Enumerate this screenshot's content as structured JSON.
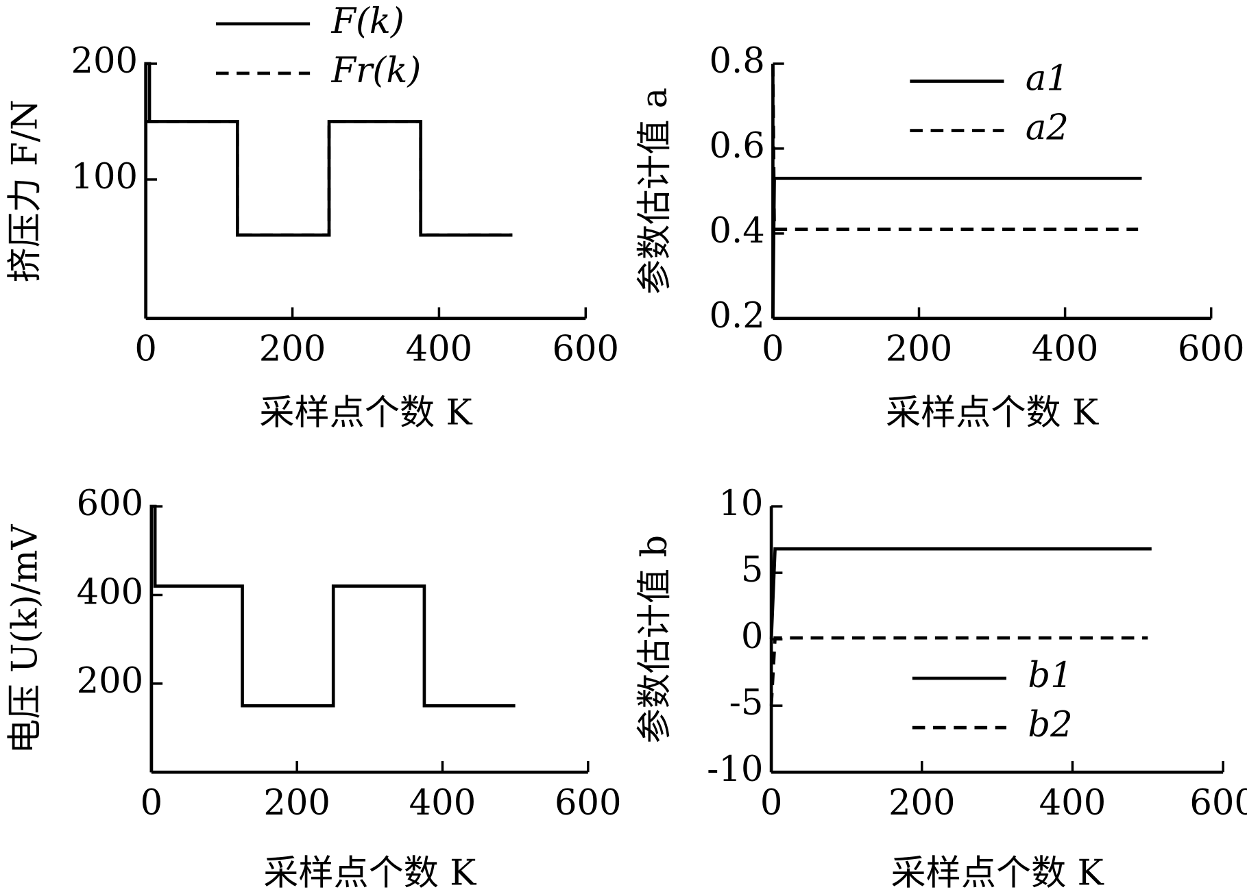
{
  "chart_data": [
    {
      "type": "line",
      "ylabel": "挤压力 F/N",
      "xlabel": "采样点个数 K",
      "xlim": [
        0,
        600
      ],
      "xticks": [
        0,
        200,
        400,
        600
      ],
      "ylim": [
        -20,
        200
      ],
      "yticks": [
        100,
        200
      ],
      "legend": "top",
      "series": [
        {
          "name": "F(k)",
          "color": "#000000",
          "dash": false,
          "x": [
            0,
            0,
            5,
            5,
            125,
            125,
            250,
            250,
            375,
            375,
            500
          ],
          "values": [
            -20,
            200,
            200,
            150,
            150,
            52,
            52,
            150,
            150,
            52,
            52
          ]
        },
        {
          "name": "Fr(k)",
          "color": "#000000",
          "dash": true,
          "x": [
            0,
            125,
            125,
            250,
            250,
            375,
            375,
            500
          ],
          "values": [
            150,
            150,
            52,
            52,
            150,
            150,
            52,
            52
          ]
        }
      ]
    },
    {
      "type": "line",
      "ylabel": "参数估计值 a",
      "xlabel": "采样点个数 K",
      "xlim": [
        0,
        600
      ],
      "xticks": [
        0,
        200,
        400,
        600
      ],
      "ylim": [
        0.2,
        0.8
      ],
      "yticks": [
        0.2,
        0.4,
        0.6,
        0.8
      ],
      "legend": "upper-right",
      "series": [
        {
          "name": "a1",
          "color": "#000000",
          "dash": false,
          "x": [
            0,
            2,
            505
          ],
          "values": [
            0.2,
            0.53,
            0.53
          ]
        },
        {
          "name": "a2",
          "color": "#000000",
          "dash": true,
          "x": [
            0,
            2,
            500
          ],
          "values": [
            0.8,
            0.41,
            0.41
          ]
        }
      ]
    },
    {
      "type": "line",
      "ylabel": "电压 U(k)/mV",
      "xlabel": "采样点个数 K",
      "xlim": [
        0,
        600
      ],
      "xticks": [
        0,
        200,
        400,
        600
      ],
      "ylim": [
        0,
        600
      ],
      "yticks": [
        200,
        400,
        600
      ],
      "legend": "none",
      "series": [
        {
          "name": "U(k)",
          "color": "#000000",
          "dash": false,
          "x": [
            0,
            0,
            5,
            5,
            125,
            125,
            250,
            250,
            375,
            375,
            500
          ],
          "values": [
            0,
            600,
            600,
            420,
            420,
            150,
            150,
            420,
            420,
            150,
            150
          ]
        }
      ]
    },
    {
      "type": "line",
      "ylabel": "参数估计值 b",
      "xlabel": "采样点个数 K",
      "xlim": [
        0,
        600
      ],
      "xticks": [
        0,
        200,
        400,
        600
      ],
      "ylim": [
        -10,
        10
      ],
      "yticks": [
        -10,
        -5,
        0,
        5,
        10
      ],
      "legend": "lower-right",
      "series": [
        {
          "name": "b1",
          "color": "#000000",
          "dash": false,
          "x": [
            0,
            5,
            505
          ],
          "values": [
            0,
            6.8,
            6.8
          ]
        },
        {
          "name": "b2",
          "color": "#000000",
          "dash": true,
          "x": [
            0,
            5,
            500
          ],
          "values": [
            -5,
            0.1,
            0.1
          ]
        }
      ]
    }
  ]
}
